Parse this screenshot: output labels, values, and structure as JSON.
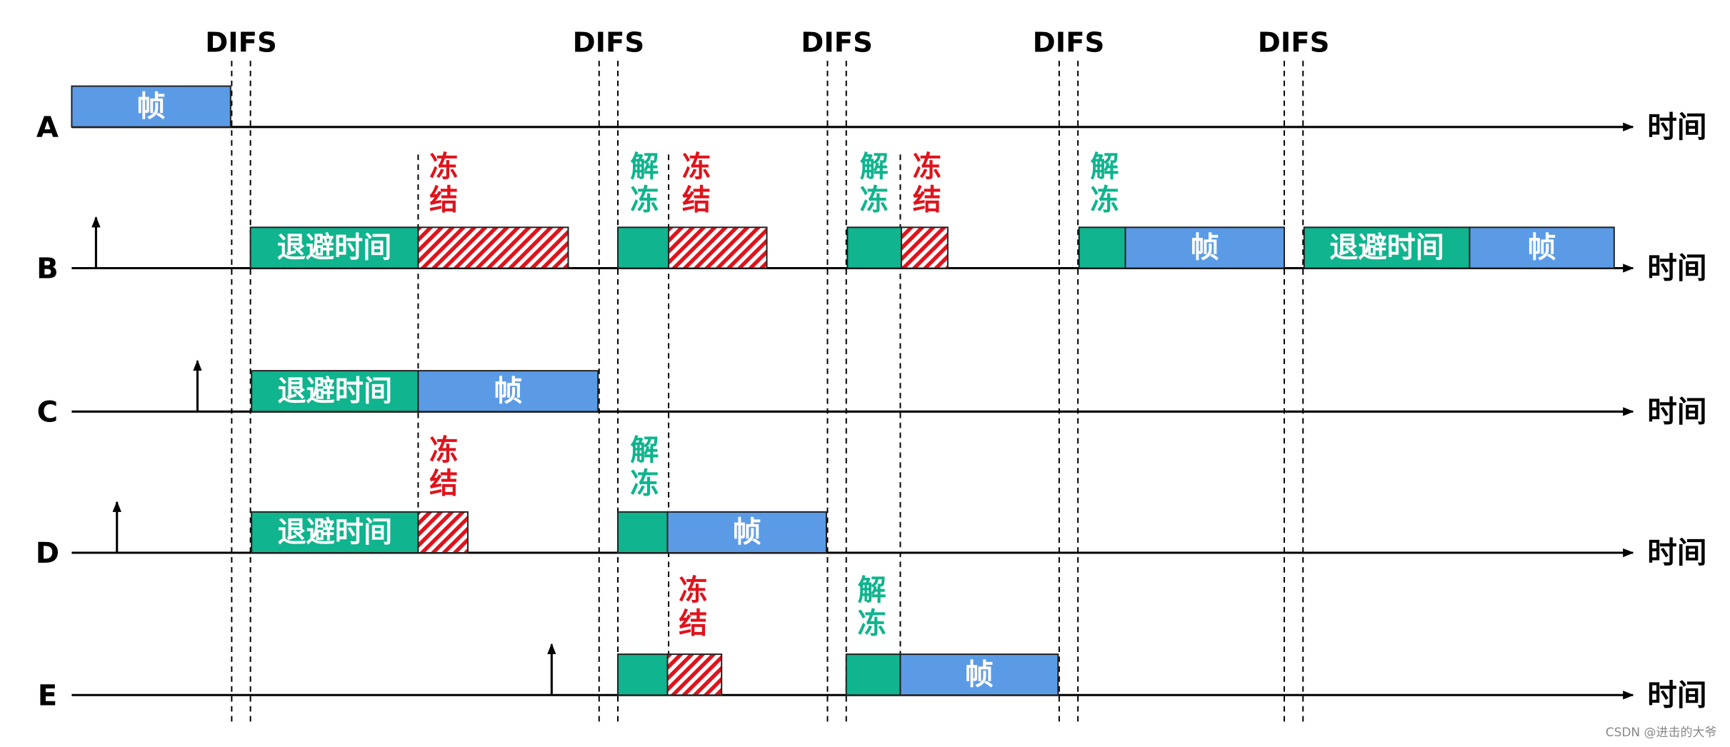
{
  "difs_labels": [
    "DIFS",
    "DIFS",
    "DIFS",
    "DIFS",
    "DIFS"
  ],
  "rows": [
    {
      "label": "A",
      "axis_label": "时间",
      "blocks": [
        "帧"
      ],
      "annotations": []
    },
    {
      "label": "B",
      "axis_label": "时间",
      "blocks": [
        "退避时间",
        "帧",
        "退避时间",
        "帧"
      ],
      "annotations": [
        "冻结",
        "解冻",
        "冻结",
        "解冻",
        "冻结",
        "解冻"
      ]
    },
    {
      "label": "C",
      "axis_label": "时间",
      "blocks": [
        "退避时间",
        "帧"
      ],
      "annotations": []
    },
    {
      "label": "D",
      "axis_label": "时间",
      "blocks": [
        "退避时间",
        "帧"
      ],
      "annotations": [
        "冻结",
        "解冻"
      ]
    },
    {
      "label": "E",
      "axis_label": "时间",
      "blocks": [
        "帧"
      ],
      "annotations": [
        "冻结",
        "解冻"
      ]
    }
  ],
  "watermark": "CSDN @进击的大爷"
}
